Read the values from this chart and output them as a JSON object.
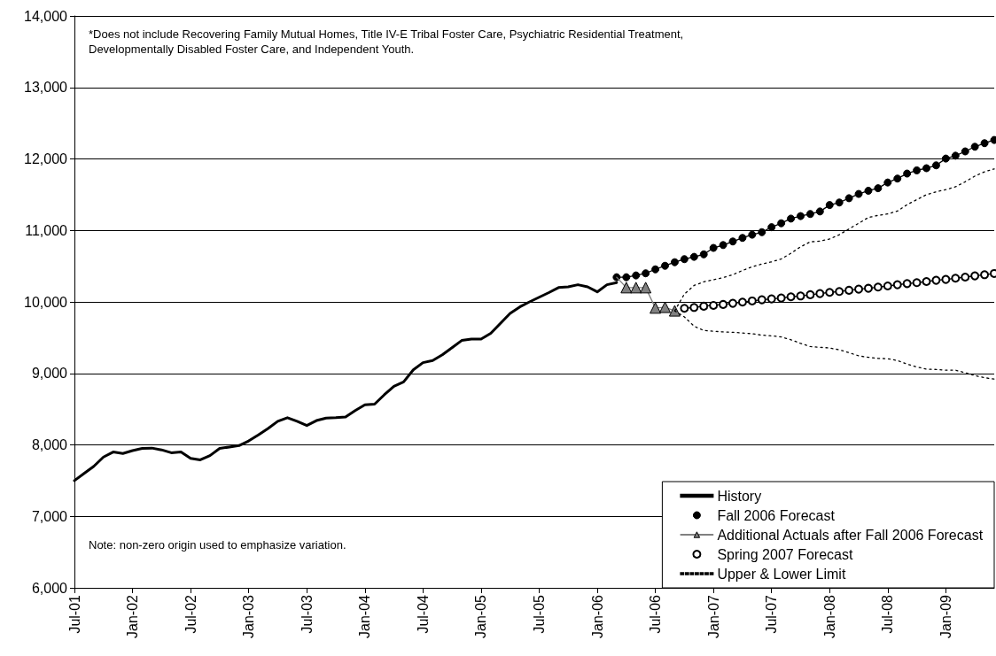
{
  "chart_data": {
    "type": "line",
    "categories": [
      "Jul-01",
      null,
      null,
      null,
      null,
      null,
      "Jan-02",
      null,
      null,
      null,
      null,
      null,
      "Jul-02",
      null,
      null,
      null,
      null,
      null,
      "Jan-03",
      null,
      null,
      null,
      null,
      null,
      "Jul-03",
      null,
      null,
      null,
      null,
      null,
      "Jan-04",
      null,
      null,
      null,
      null,
      null,
      "Jul-04",
      null,
      null,
      null,
      null,
      null,
      "Jan-05",
      null,
      null,
      null,
      null,
      null,
      "Jul-05",
      null,
      null,
      null,
      null,
      null,
      "Jan-06",
      null,
      null,
      null,
      null,
      null,
      "Jul-06",
      null,
      null,
      null,
      null,
      null,
      "Jan-07",
      null,
      null,
      null,
      null,
      null,
      "Jul-07",
      null,
      null,
      null,
      null,
      null,
      "Jan-08",
      null,
      null,
      null,
      null,
      null,
      "Jul-08",
      null,
      null,
      null,
      null,
      null,
      "Jan-09",
      null,
      null,
      null,
      null,
      null
    ],
    "series": [
      {
        "name": "History",
        "color": "#000000",
        "marker": "none",
        "line_style": "solid",
        "values": [
          7500,
          7600,
          7700,
          7830,
          7900,
          7880,
          7920,
          7950,
          7955,
          7930,
          7890,
          7900,
          7810,
          7790,
          7850,
          7950,
          7970,
          7990,
          8055,
          8140,
          8230,
          8330,
          8380,
          8330,
          8270,
          8340,
          8375,
          8380,
          8390,
          8480,
          8560,
          8570,
          8700,
          8820,
          8880,
          9050,
          9150,
          9180,
          9260,
          9360,
          9460,
          9480,
          9480,
          9560,
          9700,
          9840,
          9930,
          10000,
          10065,
          10130,
          10200,
          10210,
          10240,
          10210,
          10140,
          10240,
          10270,
          null,
          null,
          null,
          null,
          null,
          null,
          null,
          null,
          null,
          null,
          null,
          null,
          null,
          null,
          null,
          null,
          null,
          null,
          null,
          null,
          null,
          null,
          null,
          null,
          null,
          null,
          null,
          null,
          null,
          null,
          null,
          null,
          null,
          null,
          null,
          null,
          null,
          null,
          null
        ]
      },
      {
        "name": "Fall 2006 Forecast",
        "color": "#000000",
        "marker": "circle",
        "line_style": "solid",
        "values": [
          null,
          null,
          null,
          null,
          null,
          null,
          null,
          null,
          null,
          null,
          null,
          null,
          null,
          null,
          null,
          null,
          null,
          null,
          null,
          null,
          null,
          null,
          null,
          null,
          null,
          null,
          null,
          null,
          null,
          null,
          null,
          null,
          null,
          null,
          null,
          null,
          null,
          null,
          null,
          null,
          null,
          null,
          null,
          null,
          null,
          null,
          null,
          null,
          null,
          null,
          null,
          null,
          null,
          null,
          null,
          null,
          10345,
          10345,
          10370,
          10400,
          10455,
          10505,
          10555,
          10598,
          10630,
          10665,
          10755,
          10795,
          10845,
          10895,
          10940,
          10975,
          11045,
          11100,
          11165,
          11200,
          11230,
          11265,
          11355,
          11390,
          11450,
          11510,
          11555,
          11590,
          11670,
          11725,
          11795,
          11840,
          11870,
          11910,
          12005,
          12045,
          12105,
          12170,
          12220,
          12265
        ]
      },
      {
        "name": "Additional Actuals after Fall 2006 Forecast",
        "color": "#808080",
        "marker": "triangle",
        "line_style": "solid",
        "values": [
          null,
          null,
          null,
          null,
          null,
          null,
          null,
          null,
          null,
          null,
          null,
          null,
          null,
          null,
          null,
          null,
          null,
          null,
          null,
          null,
          null,
          null,
          null,
          null,
          null,
          null,
          null,
          null,
          null,
          null,
          null,
          null,
          null,
          null,
          null,
          null,
          null,
          null,
          null,
          null,
          null,
          null,
          null,
          null,
          null,
          null,
          null,
          null,
          null,
          null,
          null,
          null,
          null,
          null,
          null,
          null,
          10345,
          10200,
          10200,
          10200,
          9915,
          9925,
          9875,
          null,
          null,
          null,
          null,
          null,
          null,
          null,
          null,
          null,
          null,
          null,
          null,
          null,
          null,
          null,
          null,
          null,
          null,
          null,
          null,
          null,
          null,
          null,
          null,
          null,
          null,
          null,
          null,
          null,
          null,
          null,
          null,
          null
        ]
      },
      {
        "name": "Spring 2007 Forecast",
        "color": "#000000",
        "marker": "circle",
        "line_style": "solid",
        "values": [
          null,
          null,
          null,
          null,
          null,
          null,
          null,
          null,
          null,
          null,
          null,
          null,
          null,
          null,
          null,
          null,
          null,
          null,
          null,
          null,
          null,
          null,
          null,
          null,
          null,
          null,
          null,
          null,
          null,
          null,
          null,
          null,
          null,
          null,
          null,
          null,
          null,
          null,
          null,
          null,
          null,
          null,
          null,
          null,
          null,
          null,
          null,
          null,
          null,
          null,
          null,
          null,
          null,
          null,
          null,
          null,
          null,
          null,
          null,
          null,
          null,
          null,
          null,
          9910,
          9922,
          9939,
          9951,
          9964,
          9980,
          9997,
          10013,
          10030,
          10042,
          10054,
          10071,
          10083,
          10100,
          10116,
          10133,
          10145,
          10162,
          10178,
          10190,
          10207,
          10223,
          10240,
          10256,
          10269,
          10285,
          10302,
          10314,
          10331,
          10347,
          10364,
          10380,
          10397
        ]
      },
      {
        "name": "Upper & Lower Limit",
        "color": "#000000",
        "marker": "none",
        "line_style": "dotted",
        "values": [
          null,
          null,
          null,
          null,
          null,
          null,
          null,
          null,
          null,
          null,
          null,
          null,
          null,
          null,
          null,
          null,
          null,
          null,
          null,
          null,
          null,
          null,
          null,
          null,
          null,
          null,
          null,
          null,
          null,
          null,
          null,
          null,
          null,
          null,
          null,
          null,
          null,
          null,
          null,
          null,
          null,
          null,
          null,
          null,
          null,
          null,
          null,
          null,
          null,
          null,
          null,
          null,
          null,
          null,
          null,
          null,
          null,
          null,
          null,
          null,
          null,
          null,
          9875,
          10110,
          10230,
          10280,
          10310,
          10340,
          10380,
          10440,
          10490,
          10530,
          10560,
          10600,
          10680,
          10770,
          10840,
          10850,
          10880,
          10940,
          11020,
          11100,
          11180,
          11210,
          11230,
          11270,
          11360,
          11430,
          11500,
          11540,
          11570,
          11610,
          11680,
          11760,
          11820,
          11860
        ]
      },
      {
        "color": "#000000",
        "marker": "none",
        "line_style": "dotted",
        "values": [
          null,
          null,
          null,
          null,
          null,
          null,
          null,
          null,
          null,
          null,
          null,
          null,
          null,
          null,
          null,
          null,
          null,
          null,
          null,
          null,
          null,
          null,
          null,
          null,
          null,
          null,
          null,
          null,
          null,
          null,
          null,
          null,
          null,
          null,
          null,
          null,
          null,
          null,
          null,
          null,
          null,
          null,
          null,
          null,
          null,
          null,
          null,
          null,
          null,
          null,
          null,
          null,
          null,
          null,
          null,
          null,
          null,
          null,
          null,
          null,
          null,
          null,
          9875,
          9790,
          9660,
          9600,
          9590,
          9580,
          9575,
          9565,
          9555,
          9535,
          9525,
          9510,
          9470,
          9420,
          9375,
          9365,
          9355,
          9330,
          9290,
          9245,
          9225,
          9210,
          9205,
          9180,
          9130,
          9090,
          9060,
          9055,
          9045,
          9045,
          9010,
          8970,
          8940,
          8920
        ]
      }
    ],
    "ylim": [
      6000,
      14000
    ],
    "yticks": [
      {
        "value": 6000,
        "label": "6,000"
      },
      {
        "value": 7000,
        "label": "7,000"
      },
      {
        "value": 8000,
        "label": "8,000"
      },
      {
        "value": 9000,
        "label": "9,000"
      },
      {
        "value": 10000,
        "label": "10,000"
      },
      {
        "value": 11000,
        "label": "11,000"
      },
      {
        "value": 12000,
        "label": "12,000"
      },
      {
        "value": 13000,
        "label": "13,000"
      },
      {
        "value": 14000,
        "label": "14,000"
      }
    ],
    "grid": "y",
    "legend": "bottom right",
    "annotations": [
      "*Does not include Recovering Family Mutual Homes, Title IV-E Tribal Foster Care, Psychiatric Residential Treatment, Developmentally Disabled Foster Care, and Independent Youth.",
      "Note: non-zero origin used to emphasize variation."
    ]
  }
}
